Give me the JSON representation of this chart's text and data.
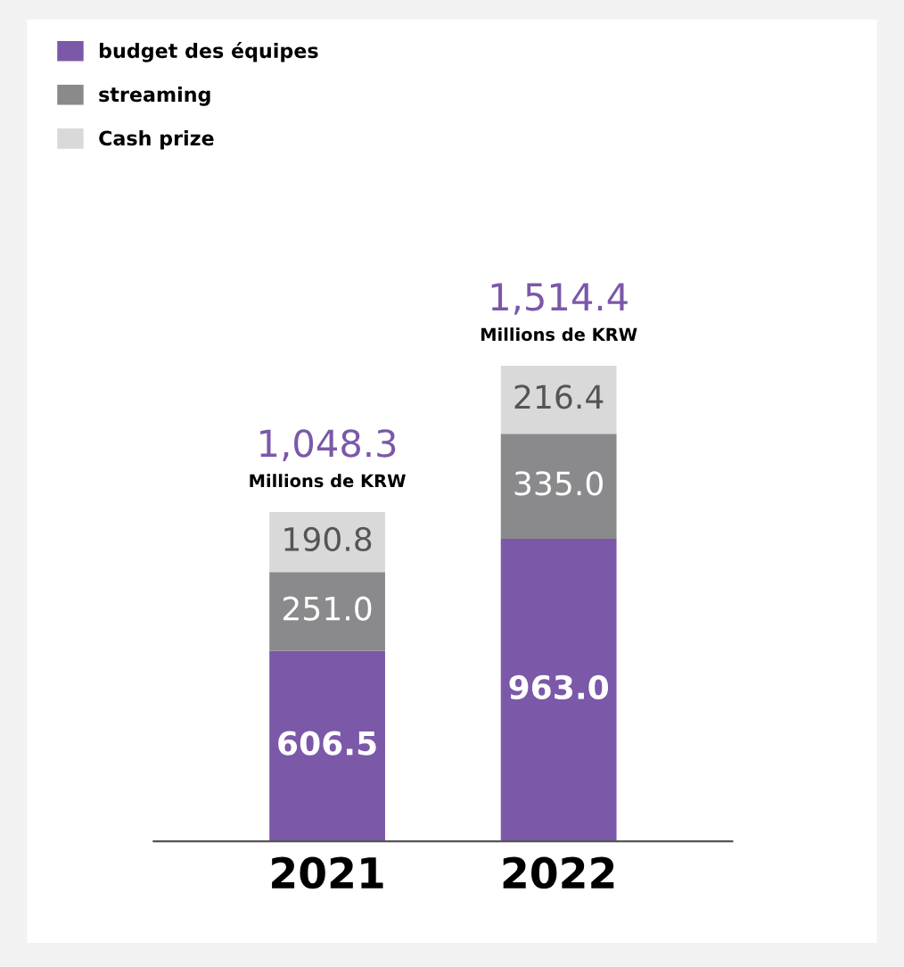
{
  "chart_data": {
    "type": "bar",
    "stacked": true,
    "categories": [
      "2021",
      "2022"
    ],
    "series": [
      {
        "name": "budget des équipes",
        "color": "#7b58a8",
        "values": [
          606.5,
          963.0
        ],
        "value_labels": [
          "606.5",
          "963.0"
        ]
      },
      {
        "name": "streaming",
        "color": "#8a8a8c",
        "values": [
          251.0,
          335.0
        ],
        "value_labels": [
          "251.0",
          "335.0"
        ]
      },
      {
        "name": "Cash prize",
        "color": "#d9d9d9",
        "values": [
          190.8,
          216.4
        ],
        "value_labels": [
          "190.8",
          "216.4"
        ]
      }
    ],
    "totals": [
      "1,048.3",
      "1,514.4"
    ],
    "annotations": [
      {
        "text": "Millions de KRW",
        "x": "2021",
        "y": 1048.3
      },
      {
        "text": "Millions de KRW",
        "x": "2022",
        "y": 1514.4
      }
    ],
    "legend": "top left",
    "grid": false
  }
}
